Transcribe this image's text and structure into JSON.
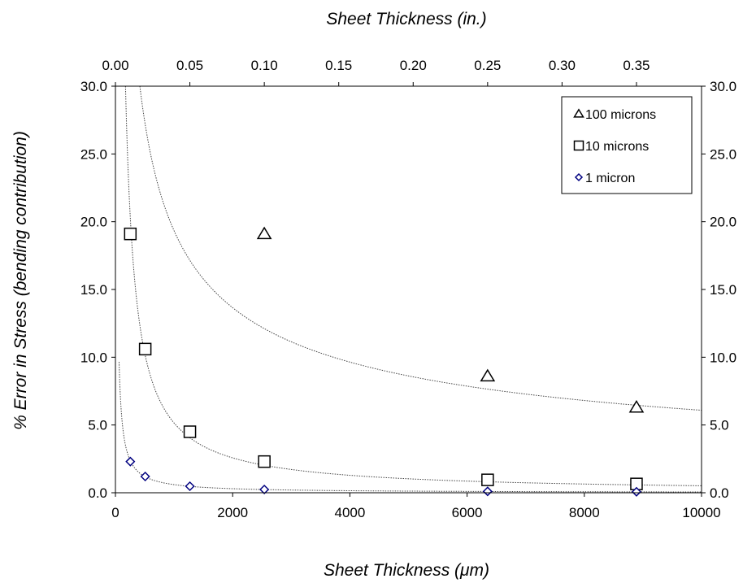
{
  "chart_data": {
    "type": "scatter",
    "title": "",
    "xlabel_bottom": "Sheet Thickness (μm)",
    "xlabel_top": "Sheet Thickness (in.)",
    "ylabel": "% Error in Stress (bending contribution)",
    "xlim": [
      0,
      10000
    ],
    "ylim": [
      0,
      30
    ],
    "x_ticks": [
      0,
      2000,
      4000,
      6000,
      8000,
      10000
    ],
    "x_tick_labels": [
      "0",
      "2000",
      "4000",
      "6000",
      "8000",
      "10000"
    ],
    "top_x_ticks": [
      0.0,
      0.05,
      0.1,
      0.15,
      0.2,
      0.25,
      0.3,
      0.35
    ],
    "top_x_tick_labels": [
      "0.00",
      "0.05",
      "0.10",
      "0.15",
      "0.20",
      "0.25",
      "0.30",
      "0.35"
    ],
    "y_ticks": [
      0,
      5,
      10,
      15,
      20,
      25,
      30
    ],
    "y_tick_labels": [
      "0.0",
      "5.0",
      "10.0",
      "15.0",
      "20.0",
      "25.0",
      "30.0"
    ],
    "grid": false,
    "legend_position": "top-right",
    "trendline_style": "dotted power fit per series",
    "series": [
      {
        "name": "100 microns",
        "marker": "triangle",
        "color": "#000000",
        "x": [
          2540,
          6350,
          8890
        ],
        "y": [
          19.1,
          8.6,
          6.3
        ],
        "fit_coef": 620,
        "fit_exp": -0.502
      },
      {
        "name": "10 microns",
        "marker": "square",
        "color": "#000000",
        "x": [
          254,
          508,
          1270,
          2540,
          6350,
          8890
        ],
        "y": [
          19.1,
          10.6,
          4.5,
          2.3,
          0.95,
          0.65
        ],
        "fit_coef": 5150,
        "fit_exp": -1.0
      },
      {
        "name": "1 micron",
        "marker": "diamond",
        "color": "#000080",
        "x": [
          254,
          508,
          1270,
          2540,
          6350,
          8890
        ],
        "y": [
          2.3,
          1.2,
          0.48,
          0.24,
          0.1,
          0.07
        ],
        "fit_coef": 600,
        "fit_exp": -1.0
      }
    ]
  }
}
